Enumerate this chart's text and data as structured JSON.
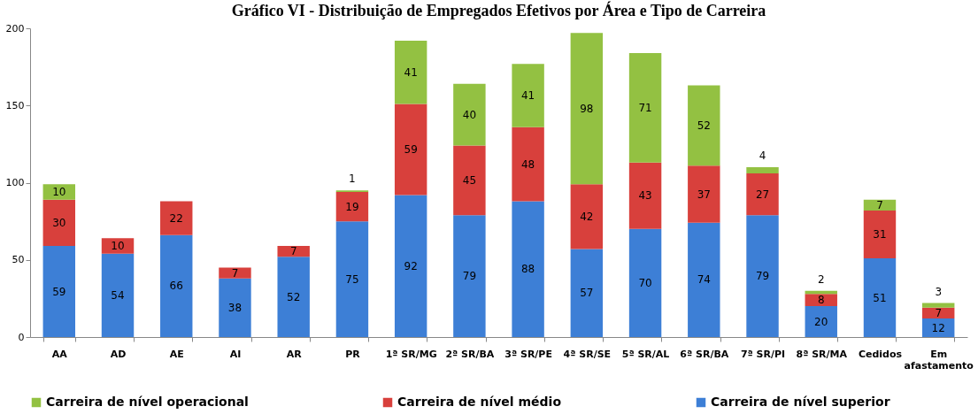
{
  "chart_data": {
    "type": "bar",
    "stacked": true,
    "title": "Gráfico VI - Distribuição de Empregados Efetivos por Área e Tipo de Carreira",
    "categories": [
      "AA",
      "AD",
      "AE",
      "AI",
      "AR",
      "PR",
      "1ª SR/MG",
      "2ª SR/BA",
      "3ª SR/PE",
      "4ª SR/SE",
      "5ª SR/AL",
      "6ª SR/BA",
      "7ª SR/PI",
      "8ª SR/MA",
      "Cedidos",
      "Em afastamento"
    ],
    "series": [
      {
        "name": "Carreira de nível superior",
        "color": "#3d7fd6",
        "values": [
          59,
          54,
          66,
          38,
          52,
          75,
          92,
          79,
          88,
          57,
          70,
          74,
          79,
          20,
          51,
          12
        ]
      },
      {
        "name": "Carreira de nível médio",
        "color": "#d8403c",
        "values": [
          30,
          10,
          22,
          7,
          7,
          19,
          59,
          45,
          48,
          42,
          43,
          37,
          27,
          8,
          31,
          7
        ]
      },
      {
        "name": "Carreira de nível operacional",
        "color": "#93c142",
        "values": [
          10,
          null,
          null,
          null,
          null,
          1,
          41,
          40,
          41,
          98,
          71,
          52,
          4,
          2,
          7,
          3
        ]
      }
    ],
    "ylim": [
      0,
      200
    ],
    "yticks": [
      0,
      50,
      100,
      150,
      200
    ],
    "grid": false,
    "legend": "bottom",
    "data_labels": true
  }
}
